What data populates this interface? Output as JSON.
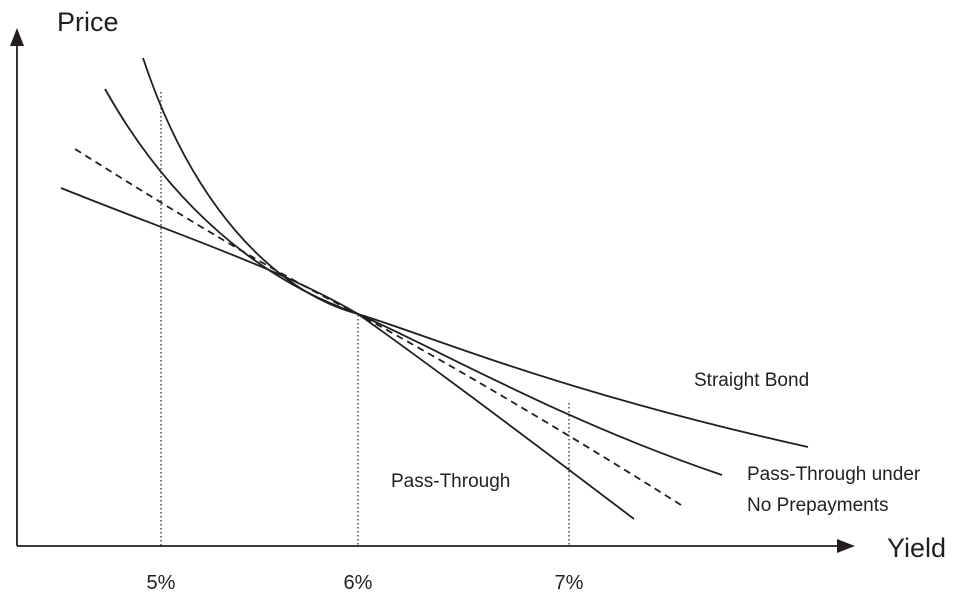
{
  "axes": {
    "y_label": "Price",
    "x_label": "Yield"
  },
  "x_ticks": [
    "5%",
    "6%",
    "7%"
  ],
  "curves": {
    "straight_bond": "Straight Bond",
    "pass_through": "Pass-Through",
    "pass_through_no_prepay_line1": "Pass-Through under",
    "pass_through_no_prepay_line2": "No Prepayments"
  },
  "colors": {
    "ink": "#231f20",
    "background": "#ffffff"
  }
}
